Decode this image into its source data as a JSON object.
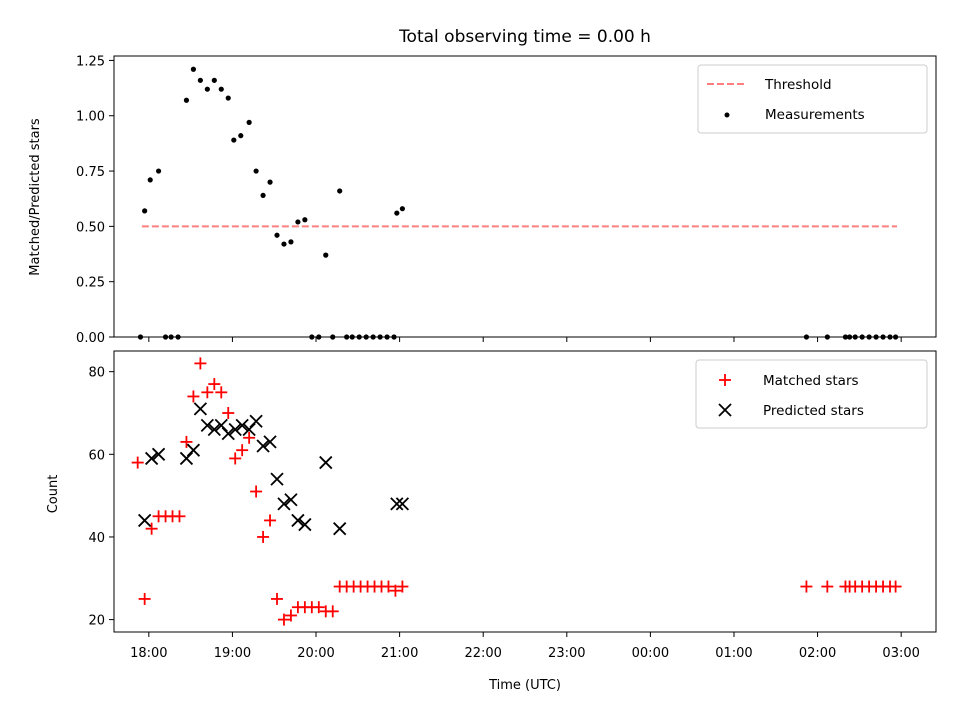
{
  "chart_data": [
    {
      "type": "scatter",
      "title": "Total observing time = 0.00 h",
      "ylabel": "Matched/Predicted stars",
      "xlabel": "",
      "xlim": [
        "17:35",
        "03:25"
      ],
      "ylim": [
        0,
        1.27
      ],
      "yticks": [
        "0.00",
        "0.25",
        "0.50",
        "0.75",
        "1.00",
        "1.25"
      ],
      "legend_position": "top-right",
      "threshold": {
        "name": "Threshold",
        "value": 0.5,
        "x_start": "17:55",
        "x_end": "02:57",
        "color": "#ff7f7f"
      },
      "series": [
        {
          "name": "Measurements",
          "color": "#000000",
          "points": [
            [
              "17:54",
              0.0
            ],
            [
              "17:57",
              0.57
            ],
            [
              "18:01",
              0.71
            ],
            [
              "18:07",
              0.75
            ],
            [
              "18:12",
              0.0
            ],
            [
              "18:16",
              0.0
            ],
            [
              "18:21",
              0.0
            ],
            [
              "18:27",
              1.07
            ],
            [
              "18:32",
              1.21
            ],
            [
              "18:37",
              1.16
            ],
            [
              "18:42",
              1.12
            ],
            [
              "18:47",
              1.16
            ],
            [
              "18:52",
              1.12
            ],
            [
              "18:57",
              1.08
            ],
            [
              "19:01",
              0.89
            ],
            [
              "19:06",
              0.91
            ],
            [
              "19:12",
              0.97
            ],
            [
              "19:17",
              0.75
            ],
            [
              "19:22",
              0.64
            ],
            [
              "19:27",
              0.7
            ],
            [
              "19:32",
              0.46
            ],
            [
              "19:37",
              0.42
            ],
            [
              "19:42",
              0.43
            ],
            [
              "19:47",
              0.52
            ],
            [
              "19:52",
              0.53
            ],
            [
              "19:57",
              0.0
            ],
            [
              "20:02",
              0.0
            ],
            [
              "20:07",
              0.37
            ],
            [
              "20:12",
              0.0
            ],
            [
              "20:17",
              0.66
            ],
            [
              "20:22",
              0.0
            ],
            [
              "20:26",
              0.0
            ],
            [
              "20:31",
              0.0
            ],
            [
              "20:36",
              0.0
            ],
            [
              "20:41",
              0.0
            ],
            [
              "20:46",
              0.0
            ],
            [
              "20:51",
              0.0
            ],
            [
              "20:56",
              0.0
            ],
            [
              "20:58",
              0.56
            ],
            [
              "21:02",
              0.58
            ],
            [
              "01:52",
              0.0
            ],
            [
              "02:07",
              0.0
            ],
            [
              "02:20",
              0.0
            ],
            [
              "02:23",
              0.0
            ],
            [
              "02:27",
              0.0
            ],
            [
              "02:32",
              0.0
            ],
            [
              "02:37",
              0.0
            ],
            [
              "02:42",
              0.0
            ],
            [
              "02:47",
              0.0
            ],
            [
              "02:52",
              0.0
            ],
            [
              "02:56",
              0.0
            ]
          ]
        }
      ]
    },
    {
      "type": "scatter",
      "title": "",
      "ylabel": "Count",
      "xlabel": "Time (UTC)",
      "xlim": [
        "17:35",
        "03:25"
      ],
      "ylim": [
        17,
        85
      ],
      "yticks": [
        "20",
        "40",
        "60",
        "80"
      ],
      "xticks": [
        "18:00",
        "19:00",
        "20:00",
        "21:00",
        "22:00",
        "23:00",
        "00:00",
        "01:00",
        "02:00",
        "03:00"
      ],
      "legend_position": "top-right",
      "series": [
        {
          "name": "Matched stars",
          "marker": "plus",
          "color": "#ff0000",
          "points": [
            [
              "17:52",
              58
            ],
            [
              "17:57",
              25
            ],
            [
              "18:02",
              42
            ],
            [
              "18:07",
              45
            ],
            [
              "18:12",
              45
            ],
            [
              "18:17",
              45
            ],
            [
              "18:22",
              45
            ],
            [
              "18:27",
              63
            ],
            [
              "18:32",
              74
            ],
            [
              "18:37",
              82
            ],
            [
              "18:42",
              75
            ],
            [
              "18:47",
              77
            ],
            [
              "18:52",
              75
            ],
            [
              "18:57",
              70
            ],
            [
              "19:02",
              59
            ],
            [
              "19:07",
              61
            ],
            [
              "19:12",
              64
            ],
            [
              "19:17",
              51
            ],
            [
              "19:22",
              40
            ],
            [
              "19:27",
              44
            ],
            [
              "19:32",
              25
            ],
            [
              "19:37",
              20
            ],
            [
              "19:42",
              21
            ],
            [
              "19:47",
              23
            ],
            [
              "19:52",
              23
            ],
            [
              "19:57",
              23
            ],
            [
              "20:02",
              23
            ],
            [
              "20:07",
              22
            ],
            [
              "20:12",
              22
            ],
            [
              "20:17",
              28
            ],
            [
              "20:22",
              28
            ],
            [
              "20:27",
              28
            ],
            [
              "20:32",
              28
            ],
            [
              "20:37",
              28
            ],
            [
              "20:42",
              28
            ],
            [
              "20:47",
              28
            ],
            [
              "20:52",
              28
            ],
            [
              "20:57",
              27
            ],
            [
              "21:02",
              28
            ],
            [
              "01:52",
              28
            ],
            [
              "02:07",
              28
            ],
            [
              "02:20",
              28
            ],
            [
              "02:23",
              28
            ],
            [
              "02:27",
              28
            ],
            [
              "02:32",
              28
            ],
            [
              "02:37",
              28
            ],
            [
              "02:42",
              28
            ],
            [
              "02:47",
              28
            ],
            [
              "02:52",
              28
            ],
            [
              "02:56",
              28
            ]
          ]
        },
        {
          "name": "Predicted stars",
          "marker": "x",
          "color": "#000000",
          "points": [
            [
              "17:57",
              44
            ],
            [
              "18:02",
              59
            ],
            [
              "18:07",
              60
            ],
            [
              "18:27",
              59
            ],
            [
              "18:32",
              61
            ],
            [
              "18:37",
              71
            ],
            [
              "18:42",
              67
            ],
            [
              "18:47",
              66
            ],
            [
              "18:52",
              67
            ],
            [
              "18:57",
              65
            ],
            [
              "19:02",
              66
            ],
            [
              "19:07",
              67
            ],
            [
              "19:12",
              66
            ],
            [
              "19:17",
              68
            ],
            [
              "19:22",
              62
            ],
            [
              "19:27",
              63
            ],
            [
              "19:32",
              54
            ],
            [
              "19:37",
              48
            ],
            [
              "19:42",
              49
            ],
            [
              "19:47",
              44
            ],
            [
              "19:52",
              43
            ],
            [
              "20:07",
              58
            ],
            [
              "20:17",
              42
            ],
            [
              "20:58",
              48
            ],
            [
              "21:02",
              48
            ]
          ]
        }
      ]
    }
  ]
}
